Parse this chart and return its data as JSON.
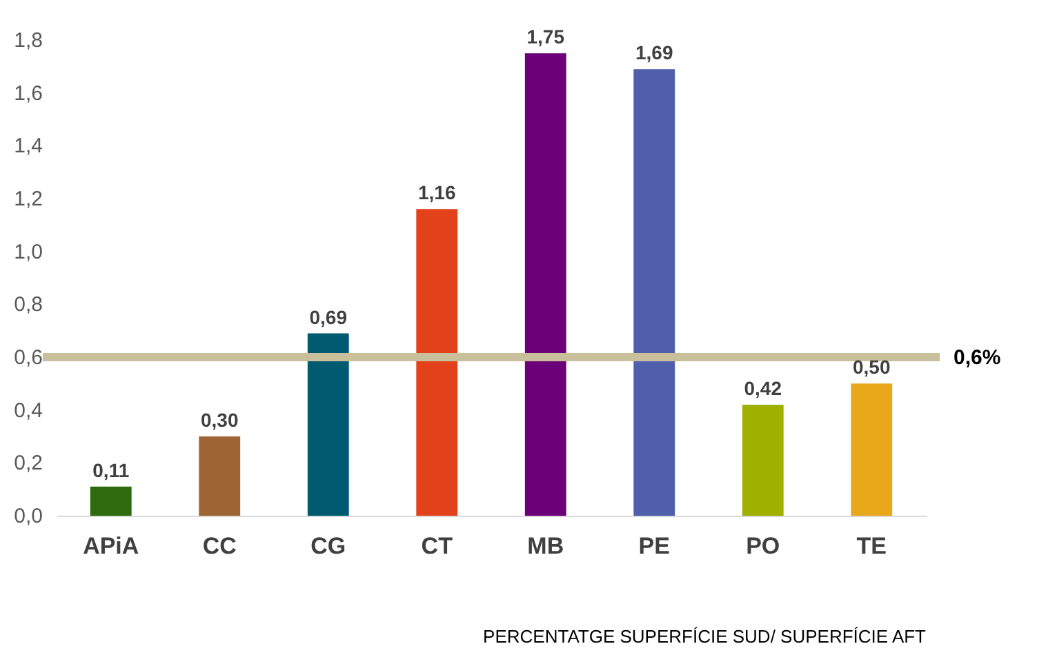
{
  "chart_data": {
    "type": "bar",
    "categories": [
      "APiA",
      "CC",
      "CG",
      "CT",
      "MB",
      "PE",
      "PO",
      "TE"
    ],
    "values": [
      0.11,
      0.3,
      0.69,
      1.16,
      1.75,
      1.69,
      0.42,
      0.5
    ],
    "colors": [
      "#2e6b0f",
      "#9e6433",
      "#005a70",
      "#e2411a",
      "#6b0078",
      "#4f5fac",
      "#a0b000",
      "#e8a81a"
    ],
    "value_labels": [
      "0,11",
      "0,30",
      "0,69",
      "1,16",
      "1,75",
      "1,69",
      "0,42",
      "0,50"
    ],
    "ylim": [
      0,
      1.8
    ],
    "yticks": [
      {
        "value": 0,
        "label": "0,0"
      },
      {
        "value": 0.2,
        "label": "0,2"
      },
      {
        "value": 0.4,
        "label": "0,4"
      },
      {
        "value": 0.6,
        "label": "0,6"
      },
      {
        "value": 0.8,
        "label": "0,8"
      },
      {
        "value": 1.0,
        "label": "1,0"
      },
      {
        "value": 1.2,
        "label": "1,2"
      },
      {
        "value": 1.4,
        "label": "1,4"
      },
      {
        "value": 1.6,
        "label": "1,6"
      },
      {
        "value": 1.8,
        "label": "1,8"
      }
    ],
    "ref_lines": [
      {
        "axis": "y",
        "value": 0.6,
        "label": "0,6%",
        "color": "#c9bf9b"
      }
    ],
    "annotations": [
      "PERCENTATGE SUPERFÍCIE SUD/ SUPERFÍCIE AFT"
    ],
    "grid": false
  }
}
